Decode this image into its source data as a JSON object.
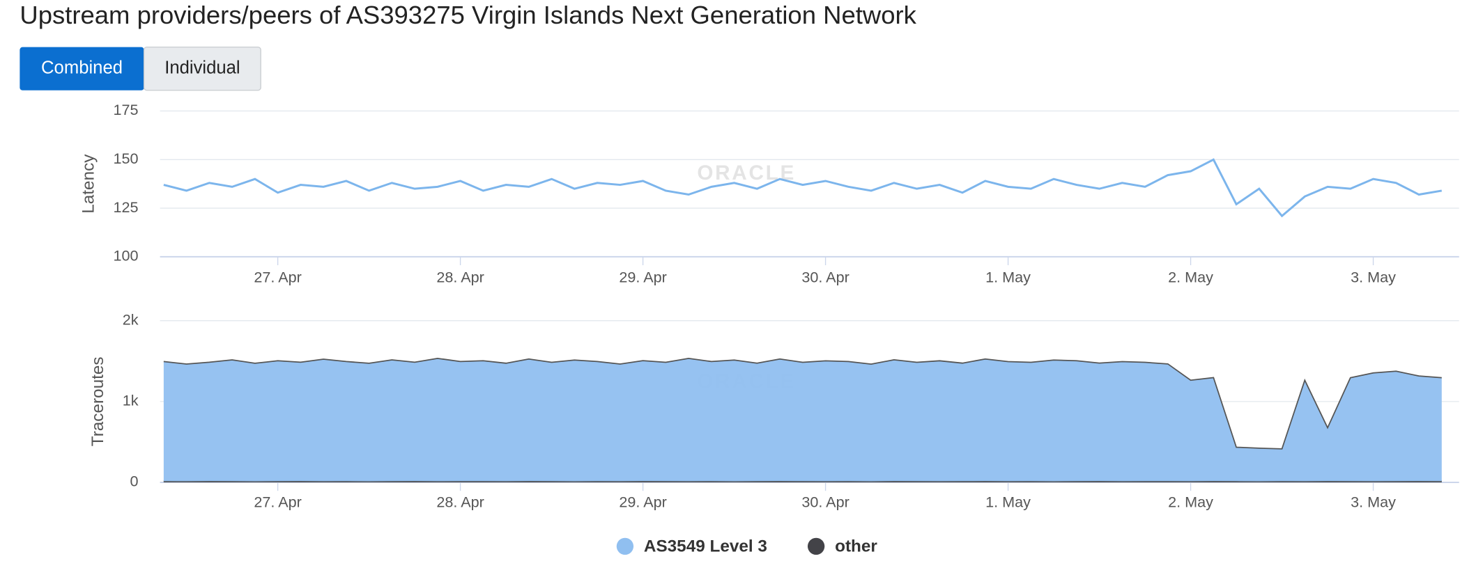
{
  "header": {
    "title": "Upstream providers/peers of AS393275 Virgin Islands Next Generation Network",
    "buttons": [
      "Combined",
      "Individual"
    ]
  },
  "watermark": "ORACLE",
  "chart_data": [
    {
      "type": "line",
      "y_title": "Latency",
      "x": [
        -0.625,
        -0.5,
        -0.375,
        -0.25,
        -0.125,
        0,
        0.125,
        0.25,
        0.375,
        0.5,
        0.625,
        0.75,
        0.875,
        1,
        1.125,
        1.25,
        1.375,
        1.5,
        1.625,
        1.75,
        1.875,
        2,
        2.125,
        2.25,
        2.375,
        2.5,
        2.625,
        2.75,
        2.875,
        3,
        3.125,
        3.25,
        3.375,
        3.5,
        3.625,
        3.75,
        3.875,
        4,
        4.125,
        4.25,
        4.375,
        4.5,
        4.625,
        4.75,
        4.875,
        5,
        5.125,
        5.25,
        5.375,
        5.5,
        5.625,
        5.75,
        5.875,
        6,
        6.125,
        6.25,
        6.375
      ],
      "series": [
        {
          "name": "Latency",
          "color": "#7cb5ec",
          "values": [
            137,
            134,
            138,
            136,
            140,
            133,
            137,
            136,
            139,
            134,
            138,
            135,
            136,
            139,
            134,
            137,
            136,
            140,
            135,
            138,
            137,
            139,
            134,
            132,
            136,
            138,
            135,
            140,
            137,
            139,
            136,
            134,
            138,
            135,
            137,
            133,
            139,
            136,
            135,
            140,
            137,
            135,
            138,
            136,
            142,
            144,
            150,
            127,
            135,
            121,
            131,
            136,
            135,
            140,
            138,
            132,
            134
          ]
        }
      ],
      "xlim": [
        -0.645,
        6.47
      ],
      "xticks": [
        {
          "value": 0,
          "label": "27. Apr"
        },
        {
          "value": 1,
          "label": "28. Apr"
        },
        {
          "value": 2,
          "label": "29. Apr"
        },
        {
          "value": 3,
          "label": "30. Apr"
        },
        {
          "value": 4,
          "label": "1. May"
        },
        {
          "value": 5,
          "label": "2. May"
        },
        {
          "value": 6,
          "label": "3. May"
        }
      ],
      "ylim": [
        100,
        175
      ],
      "yticks": [
        100,
        125,
        150,
        175
      ],
      "grid": true
    },
    {
      "type": "stacked-area",
      "y_title": "Traceroutes",
      "x": [
        -0.625,
        -0.5,
        -0.375,
        -0.25,
        -0.125,
        0,
        0.125,
        0.25,
        0.375,
        0.5,
        0.625,
        0.75,
        0.875,
        1,
        1.125,
        1.25,
        1.375,
        1.5,
        1.625,
        1.75,
        1.875,
        2,
        2.125,
        2.25,
        2.375,
        2.5,
        2.625,
        2.75,
        2.875,
        3,
        3.125,
        3.25,
        3.375,
        3.5,
        3.625,
        3.75,
        3.875,
        4,
        4.125,
        4.25,
        4.375,
        4.5,
        4.625,
        4.75,
        4.875,
        5,
        5.125,
        5.25,
        5.375,
        5.5,
        5.625,
        5.75,
        5.875,
        6,
        6.125,
        6.25,
        6.375
      ],
      "series": [
        {
          "name": "AS3549 Level 3",
          "color": "#90bff0",
          "values": [
            1480,
            1450,
            1470,
            1500,
            1460,
            1490,
            1470,
            1510,
            1480,
            1460,
            1500,
            1470,
            1520,
            1480,
            1490,
            1460,
            1510,
            1470,
            1500,
            1480,
            1450,
            1490,
            1470,
            1520,
            1480,
            1500,
            1460,
            1510,
            1470,
            1490,
            1480,
            1450,
            1500,
            1470,
            1490,
            1460,
            1510,
            1480,
            1470,
            1500,
            1490,
            1460,
            1480,
            1470,
            1450,
            1250,
            1280,
            420,
            410,
            400,
            1250,
            660,
            1280,
            1340,
            1360,
            1300,
            1280
          ]
        },
        {
          "name": "other",
          "color": "#434348",
          "values": [
            15,
            14,
            16,
            15,
            13,
            15,
            16,
            14,
            15,
            13,
            15,
            16,
            14,
            15,
            15,
            14,
            16,
            15,
            13,
            15,
            14,
            16,
            15,
            14,
            15,
            13,
            15,
            16,
            15,
            14,
            15,
            13,
            16,
            15,
            14,
            15,
            16,
            14,
            15,
            13,
            15,
            16,
            14,
            15,
            15,
            14,
            16,
            15,
            13,
            15,
            14,
            16,
            15,
            14,
            15,
            16,
            15
          ]
        }
      ],
      "xlim": [
        -0.645,
        6.47
      ],
      "xticks": [
        {
          "value": 0,
          "label": "27. Apr"
        },
        {
          "value": 1,
          "label": "28. Apr"
        },
        {
          "value": 2,
          "label": "29. Apr"
        },
        {
          "value": 3,
          "label": "30. Apr"
        },
        {
          "value": 4,
          "label": "1. May"
        },
        {
          "value": 5,
          "label": "2. May"
        },
        {
          "value": 6,
          "label": "3. May"
        }
      ],
      "ylim": [
        0,
        2000
      ],
      "yticks": [
        0,
        {
          "value": 1000,
          "label": "1k"
        },
        {
          "value": 2000,
          "label": "2k"
        }
      ],
      "grid": true
    }
  ]
}
